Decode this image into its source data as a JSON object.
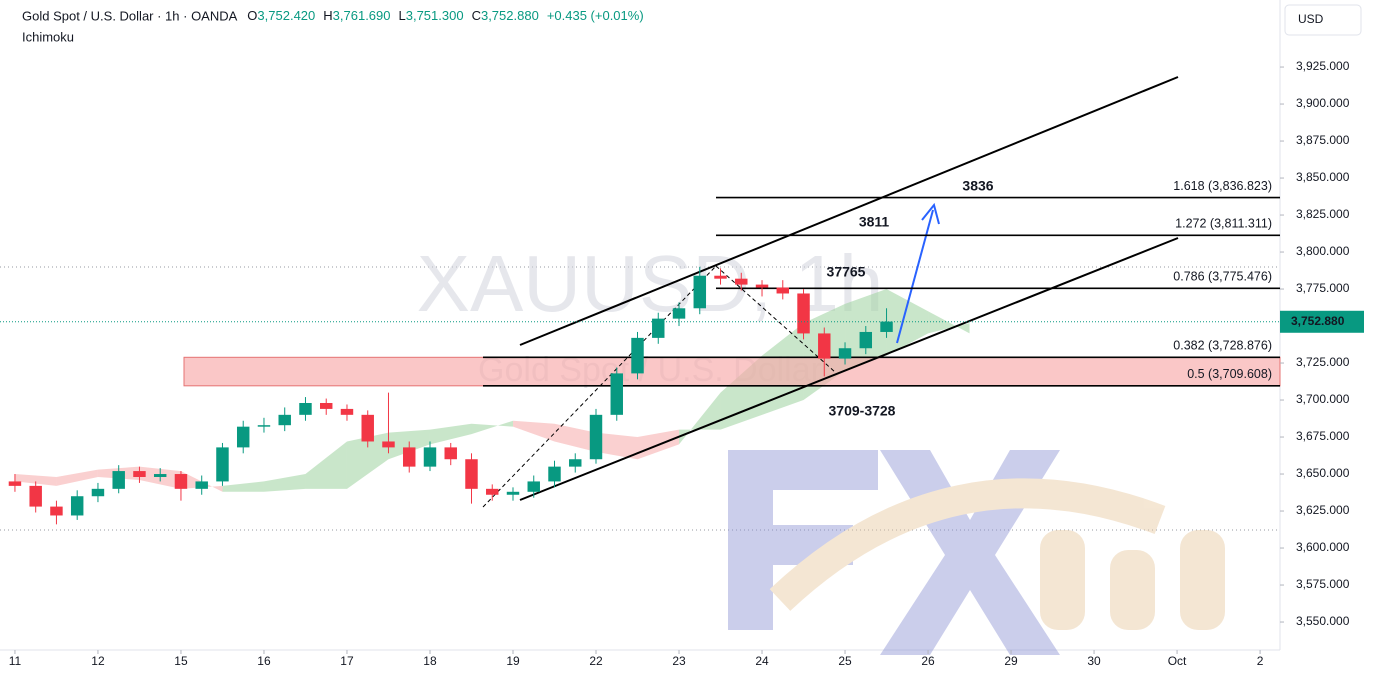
{
  "chart_data": {
    "type": "candlestick",
    "title": "Gold Spot / U.S. Dollar · 1h · OANDA",
    "ohlc_labels": {
      "open_key": "O",
      "open": "3,752.420",
      "high_key": "H",
      "high": "3,761.690",
      "low_key": "L",
      "low": "3,751.300",
      "close_key": "C",
      "close": "3,752.880",
      "change": "+0.435 (+0.01%)"
    },
    "indicator": "Ichimoku",
    "watermark": "XAUUSD, 1h",
    "watermark_subtitle": "Gold Spot / U.S. Dollar",
    "currency": "USD",
    "last_price": {
      "value": 3752.88,
      "label": "3,752.880"
    },
    "up_color": "#089981",
    "down_color": "#f23645",
    "x": [
      0,
      0.25,
      0.5,
      0.75,
      1,
      1.25,
      1.5,
      1.75,
      2,
      2.25,
      2.5,
      2.75,
      3,
      3.25,
      3.5,
      3.75,
      4,
      4.25,
      4.5,
      4.75,
      5,
      5.25,
      5.5,
      5.75,
      6,
      6.25,
      6.5,
      6.75,
      7,
      7.25,
      7.5,
      7.75,
      8,
      8.25,
      8.5,
      8.75,
      9,
      9.25,
      9.5,
      9.75,
      10,
      10.25,
      10.5
    ],
    "open": [
      3645,
      3642,
      3628,
      3622,
      3635,
      3640,
      3652,
      3648,
      3650,
      3640,
      3645,
      3668,
      3682,
      3683,
      3690,
      3698,
      3694,
      3690,
      3672,
      3668,
      3655,
      3668,
      3660,
      3640,
      3636,
      3638,
      3645,
      3655,
      3660,
      3690,
      3718,
      3742,
      3755,
      3762,
      3784,
      3782,
      3778,
      3776,
      3772,
      3745,
      3728,
      3735,
      3746
    ],
    "high": [
      3650,
      3645,
      3632,
      3639,
      3644,
      3656,
      3655,
      3654,
      3652,
      3649,
      3671,
      3686,
      3688,
      3695,
      3702,
      3701,
      3697,
      3693,
      3705,
      3672,
      3672,
      3671,
      3664,
      3643,
      3641,
      3649,
      3659,
      3664,
      3694,
      3722,
      3746,
      3759,
      3766,
      3790,
      3789,
      3786,
      3781,
      3781,
      3775,
      3749,
      3739,
      3750,
      3762
    ],
    "low": [
      3638,
      3624,
      3616,
      3619,
      3631,
      3637,
      3644,
      3645,
      3632,
      3636,
      3642,
      3664,
      3678,
      3679,
      3686,
      3690,
      3686,
      3668,
      3664,
      3651,
      3652,
      3656,
      3630,
      3632,
      3632,
      3634,
      3641,
      3651,
      3657,
      3686,
      3714,
      3738,
      3750,
      3758,
      3778,
      3774,
      3770,
      3768,
      3741,
      3716,
      3724,
      3731,
      3742
    ],
    "close": [
      3642,
      3628,
      3622,
      3635,
      3640,
      3652,
      3648,
      3650,
      3640,
      3645,
      3668,
      3682,
      3683,
      3690,
      3698,
      3694,
      3690,
      3672,
      3668,
      3655,
      3668,
      3660,
      3640,
      3636,
      3638,
      3645,
      3655,
      3660,
      3690,
      3718,
      3742,
      3755,
      3762,
      3784,
      3782,
      3778,
      3776,
      3772,
      3745,
      3728,
      3735,
      3746,
      3753
    ],
    "cloud": {
      "x": [
        0,
        0.5,
        1,
        1.5,
        2,
        2.5,
        3,
        3.5,
        4,
        4.5,
        5,
        5.5,
        6,
        6.5,
        7,
        7.5,
        8,
        8.5,
        9,
        9.5,
        10,
        10.5,
        11,
        11.5
      ],
      "span_a": [
        3645,
        3642,
        3648,
        3646,
        3640,
        3642,
        3645,
        3650,
        3672,
        3678,
        3680,
        3684,
        3682,
        3672,
        3665,
        3660,
        3670,
        3705,
        3730,
        3752,
        3765,
        3775,
        3760,
        3745
      ],
      "span_b": [
        3650,
        3648,
        3653,
        3655,
        3652,
        3638,
        3638,
        3640,
        3640,
        3660,
        3670,
        3677,
        3686,
        3684,
        3678,
        3675,
        3680,
        3680,
        3690,
        3700,
        3720,
        3730,
        3745,
        3752
      ],
      "up_color": "#a5d6a7",
      "down_color": "#f7b0b0"
    },
    "fib_levels": [
      {
        "value": 3836.823,
        "label": "1.618 (3,836.823)"
      },
      {
        "value": 3811.311,
        "label": "1.272 (3,811.311)"
      },
      {
        "value": 3775.476,
        "label": "0.786 (3,775.476)"
      },
      {
        "value": 3728.876,
        "label": "0.382 (3,728.876)"
      },
      {
        "value": 3709.608,
        "label": "0.5 (3,709.608)"
      }
    ],
    "annotations": [
      "3836",
      "3811",
      "37765",
      "3709-3728"
    ],
    "xlim": [
      -0.18,
      15.24
    ],
    "ylim": [
      3531.1,
      3970.3
    ],
    "xticks": [
      {
        "value": 0,
        "label": "11"
      },
      {
        "value": 1,
        "label": "12"
      },
      {
        "value": 2,
        "label": "15"
      },
      {
        "value": 3,
        "label": "16"
      },
      {
        "value": 4,
        "label": "17"
      },
      {
        "value": 5,
        "label": "18"
      },
      {
        "value": 6,
        "label": "19"
      },
      {
        "value": 7,
        "label": "22"
      },
      {
        "value": 8,
        "label": "23"
      },
      {
        "value": 9,
        "label": "24"
      },
      {
        "value": 10,
        "label": "25"
      },
      {
        "value": 11,
        "label": "26"
      },
      {
        "value": 12,
        "label": "29"
      },
      {
        "value": 13,
        "label": "30"
      },
      {
        "value": 14,
        "label": "Oct"
      },
      {
        "value": 15,
        "label": "2"
      }
    ],
    "yticks": [
      {
        "value": 3550,
        "label": "3,550.000"
      },
      {
        "value": 3575,
        "label": "3,575.000"
      },
      {
        "value": 3600,
        "label": "3,600.000"
      },
      {
        "value": 3625,
        "label": "3,625.000"
      },
      {
        "value": 3650,
        "label": "3,650.000"
      },
      {
        "value": 3675,
        "label": "3,675.000"
      },
      {
        "value": 3700,
        "label": "3,700.000"
      },
      {
        "value": 3725,
        "label": "3,725.000"
      },
      {
        "value": 3750,
        "label": "3,750.000"
      },
      {
        "value": 3775,
        "label": "3,775.000"
      },
      {
        "value": 3800,
        "label": "3,800.000"
      },
      {
        "value": 3825,
        "label": "3,825.000"
      },
      {
        "value": 3850,
        "label": "3,850.000"
      },
      {
        "value": 3875,
        "label": "3,875.000"
      },
      {
        "value": 3900,
        "label": "3,900.000"
      },
      {
        "value": 3925,
        "label": "3,925.000"
      }
    ]
  }
}
